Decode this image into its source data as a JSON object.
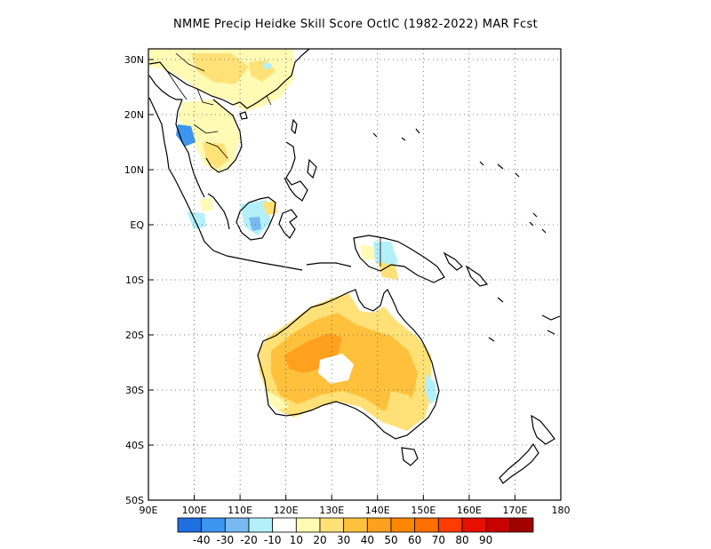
{
  "title": "NMME Precip Heidke Skill Score OctIC (1982-2022) MAR Fcst",
  "map": {
    "lat_labels": [
      "30N",
      "20N",
      "10N",
      "EQ",
      "10S",
      "20S",
      "30S",
      "40S",
      "50S"
    ],
    "lon_labels": [
      "90E",
      "100E",
      "110E",
      "120E",
      "130E",
      "140E",
      "150E",
      "160E",
      "170E",
      "180"
    ],
    "grid": "dotted"
  },
  "colorbar": {
    "colors": [
      "#1e6fe0",
      "#3c96f0",
      "#78b9f2",
      "#b4f0fa",
      "#ffffff",
      "#fffab4",
      "#ffe178",
      "#ffc13c",
      "#ffa01e",
      "#ff8700",
      "#ff6e00",
      "#ff3c00",
      "#e60f00",
      "#c80000",
      "#a00000"
    ],
    "labels": [
      "-40",
      "-30",
      "-20",
      "-10",
      "10",
      "20",
      "30",
      "40",
      "50",
      "60",
      "70",
      "80",
      "90"
    ]
  }
}
